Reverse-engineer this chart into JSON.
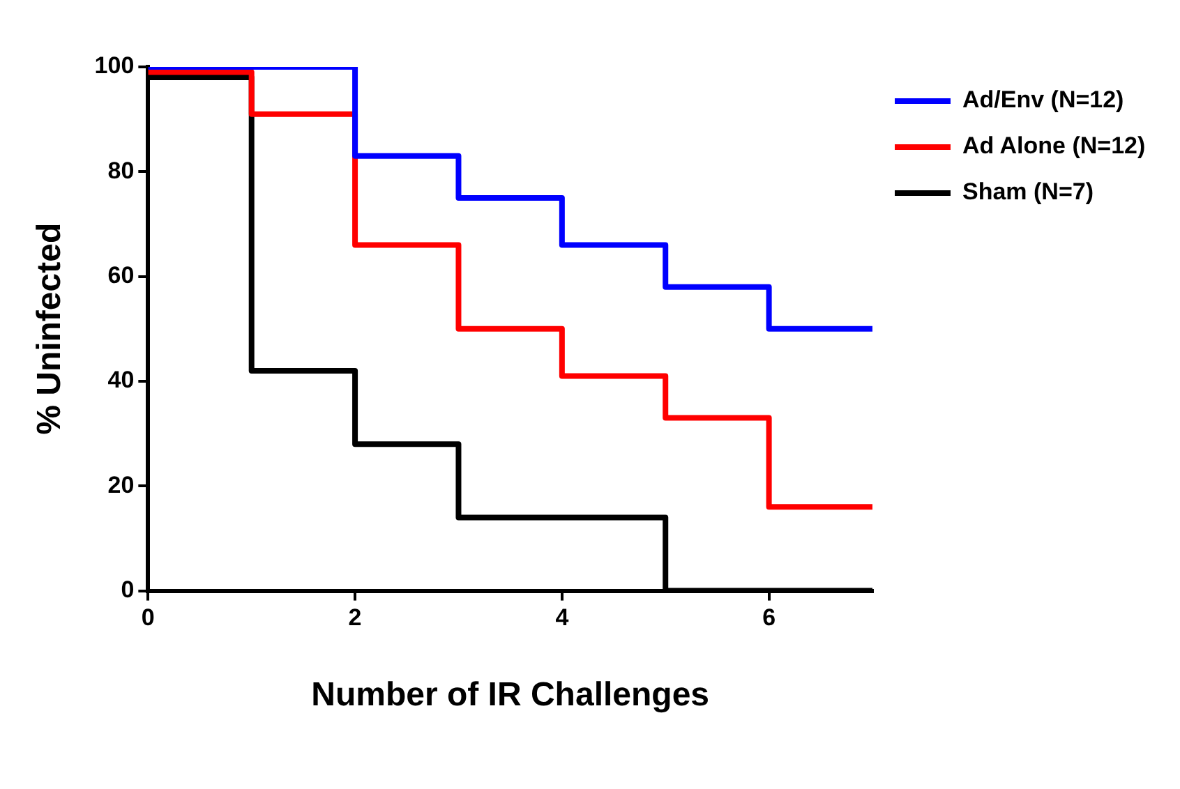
{
  "chart_data": {
    "type": "step",
    "xlabel": "Number of IR Challenges",
    "ylabel": "% Uninfected",
    "x": [
      0,
      1,
      2,
      3,
      4,
      5,
      6,
      7
    ],
    "series": [
      {
        "name": "Ad/Env (N=12)",
        "color": "#0000ff",
        "values": [
          100,
          100,
          83,
          75,
          66,
          58,
          50,
          50
        ]
      },
      {
        "name": "Ad Alone (N=12)",
        "color": "#ff0000",
        "values": [
          99,
          91,
          66,
          50,
          41,
          33,
          16,
          16
        ]
      },
      {
        "name": "Sham (N=7)",
        "color": "#000000",
        "values": [
          98,
          42,
          28,
          14,
          14,
          0,
          0,
          0
        ]
      }
    ],
    "xlim": [
      0,
      7
    ],
    "xticks": [
      0,
      2,
      4,
      6
    ],
    "ylim": [
      0,
      100
    ],
    "yticks": [
      0,
      20,
      40,
      60,
      80,
      100
    ],
    "grid": false,
    "legend": "top right",
    "marker": "none",
    "line_style": "solid"
  }
}
